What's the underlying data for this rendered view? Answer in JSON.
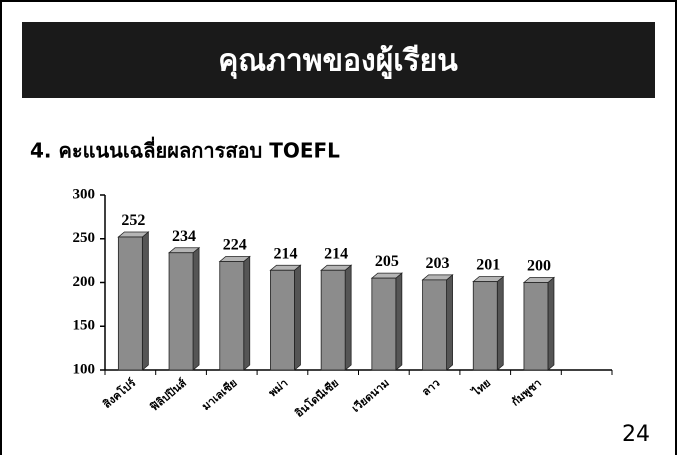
{
  "slide": {
    "title": "คุณภาพของผู้เรียน",
    "page_number": "24"
  },
  "chart_data": {
    "type": "bar",
    "title": "4. คะแนนเฉลี่ยผลการสอบ TOEFL",
    "categories": [
      "สิงคโปร์",
      "ฟิลิปปินส์",
      "มาเลเซีย",
      "พม่า",
      "อินโดนีเซีย",
      "เวียดนาม",
      "ลาว",
      "ไทย",
      "กัมพูชา"
    ],
    "values": [
      252,
      234,
      224,
      214,
      214,
      205,
      203,
      201,
      200
    ],
    "color": "#8c8c8c",
    "ylim": [
      100,
      300
    ],
    "yticks": [
      100,
      150,
      200,
      250,
      300
    ],
    "grid": false
  }
}
